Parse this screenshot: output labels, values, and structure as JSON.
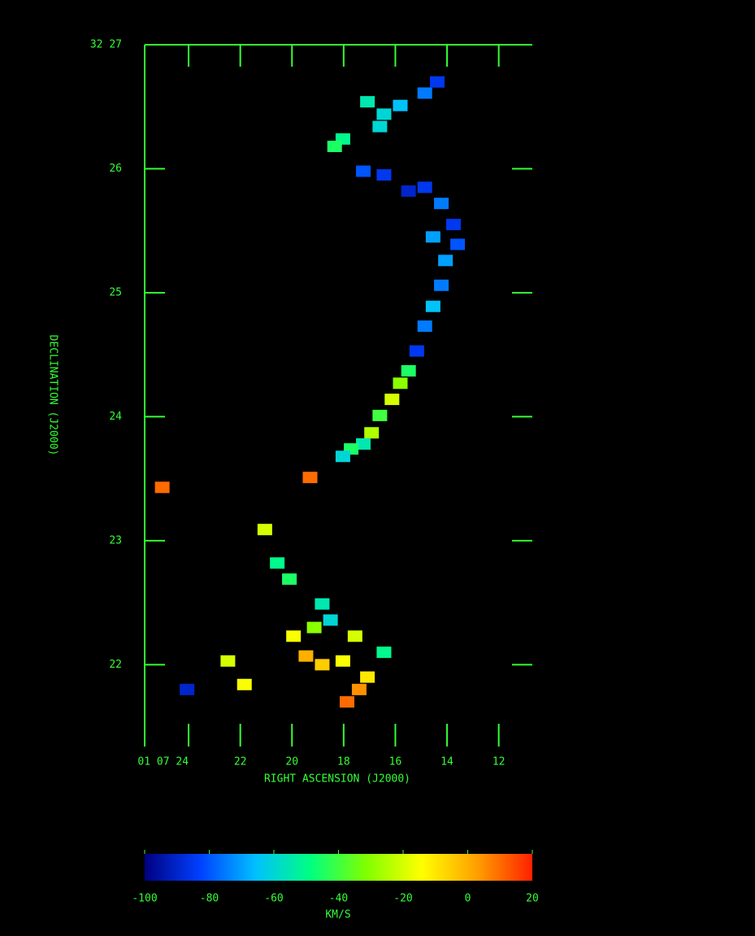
{
  "chart_data": {
    "type": "velocity-map",
    "x_label": "RIGHT ASCENSION (J2000)",
    "y_label": "DECLINATION (J2000)",
    "xlim": [
      25.7,
      10.7
    ],
    "ylim": [
      21.34,
      27
    ],
    "xticks": [
      {
        "value": 24,
        "label": "01 07 24"
      },
      22,
      20,
      18,
      16,
      14,
      12
    ],
    "yticks": [
      {
        "value": 27,
        "label": "32 27"
      },
      26,
      25,
      24,
      23,
      22
    ],
    "points": {
      "x": [
        17.08,
        16.44,
        15.81,
        14.86,
        14.38,
        16.6,
        18.03,
        18.35,
        17.24,
        16.44,
        15.49,
        14.86,
        14.22,
        13.75,
        13.59,
        14.54,
        14.06,
        14.22,
        14.54,
        14.86,
        15.17,
        15.49,
        15.81,
        16.13,
        16.6,
        16.92,
        17.24,
        17.71,
        18.03,
        21.05,
        20.57,
        20.1,
        18.83,
        18.51,
        19.14,
        19.94,
        19.46,
        18.83,
        18.03,
        17.56,
        16.44,
        17.08,
        17.4,
        17.87,
        21.84,
        24.06,
        22.48,
        19.3,
        25.02
      ],
      "y": [
        26.54,
        26.44,
        26.51,
        26.61,
        26.7,
        26.34,
        26.24,
        26.18,
        25.98,
        25.95,
        25.82,
        25.85,
        25.72,
        25.55,
        25.39,
        25.45,
        25.26,
        25.06,
        24.89,
        24.73,
        24.53,
        24.37,
        24.27,
        24.14,
        24.01,
        23.87,
        23.78,
        23.74,
        23.68,
        23.09,
        22.82,
        22.69,
        22.49,
        22.36,
        22.3,
        22.23,
        22.07,
        22.0,
        22.03,
        22.23,
        22.1,
        21.9,
        21.8,
        21.7,
        21.84,
        21.8,
        22.03,
        23.51,
        23.43
      ],
      "v": [
        -55,
        -60,
        -65,
        -75,
        -85,
        -60,
        -50,
        -45,
        -80,
        -85,
        -90,
        -85,
        -75,
        -85,
        -80,
        -70,
        -70,
        -75,
        -65,
        -75,
        -85,
        -45,
        -30,
        -20,
        -40,
        -25,
        -55,
        -45,
        -60,
        -20,
        -50,
        -45,
        -55,
        -60,
        -30,
        -15,
        0,
        -5,
        -15,
        -20,
        -50,
        -10,
        5,
        10,
        -15,
        -90,
        -20,
        10,
        10
      ]
    },
    "colormap": [
      "#000080",
      "#0040ff",
      "#00c0ff",
      "#00ff80",
      "#80ff00",
      "#ffff00",
      "#ffa000",
      "#ff2000"
    ],
    "colorbar": {
      "label": "KM/S",
      "clim": [
        -100,
        20
      ],
      "ticks": [
        -100,
        -80,
        -60,
        -40,
        -20,
        0,
        20
      ]
    }
  }
}
